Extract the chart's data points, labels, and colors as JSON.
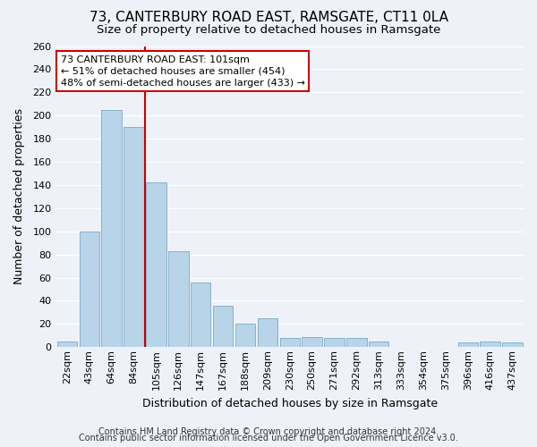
{
  "title": "73, CANTERBURY ROAD EAST, RAMSGATE, CT11 0LA",
  "subtitle": "Size of property relative to detached houses in Ramsgate",
  "xlabel": "Distribution of detached houses by size in Ramsgate",
  "ylabel": "Number of detached properties",
  "bar_labels": [
    "22sqm",
    "43sqm",
    "64sqm",
    "84sqm",
    "105sqm",
    "126sqm",
    "147sqm",
    "167sqm",
    "188sqm",
    "209sqm",
    "230sqm",
    "250sqm",
    "271sqm",
    "292sqm",
    "313sqm",
    "333sqm",
    "354sqm",
    "375sqm",
    "396sqm",
    "416sqm",
    "437sqm"
  ],
  "bar_values": [
    5,
    100,
    205,
    190,
    142,
    83,
    56,
    36,
    20,
    25,
    8,
    9,
    8,
    8,
    5,
    0,
    0,
    0,
    4,
    5,
    4
  ],
  "bar_color": "#b8d4e8",
  "bar_edge_color": "#7aaac8",
  "vline_color": "#cc0000",
  "vline_index": 4,
  "annotation_title": "73 CANTERBURY ROAD EAST: 101sqm",
  "annotation_line1": "← 51% of detached houses are smaller (454)",
  "annotation_line2": "48% of semi-detached houses are larger (433) →",
  "annotation_box_facecolor": "#ffffff",
  "annotation_box_edgecolor": "#cc0000",
  "ylim": [
    0,
    260
  ],
  "yticks": [
    0,
    20,
    40,
    60,
    80,
    100,
    120,
    140,
    160,
    180,
    200,
    220,
    240,
    260
  ],
  "footer_line1": "Contains HM Land Registry data © Crown copyright and database right 2024.",
  "footer_line2": "Contains public sector information licensed under the Open Government Licence v3.0.",
  "background_color": "#eef2f8",
  "grid_color": "#ffffff",
  "title_fontsize": 11,
  "subtitle_fontsize": 9.5,
  "axis_label_fontsize": 9,
  "tick_fontsize": 8,
  "footer_fontsize": 7
}
